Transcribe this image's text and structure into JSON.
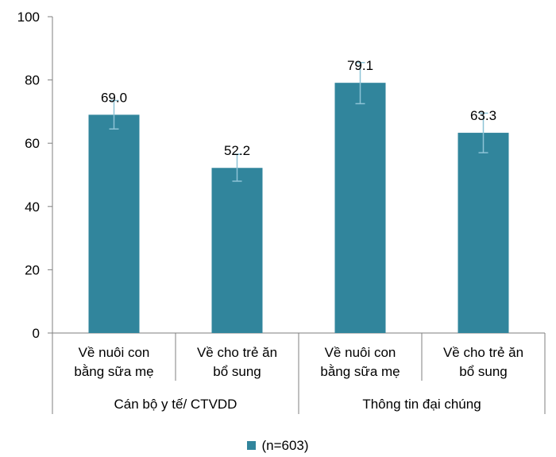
{
  "chart_data": {
    "type": "bar",
    "categories": [
      {
        "line1": "Về nuôi con",
        "line2": "bằng sữa mẹ",
        "group": "Cán bộ y tế/ CTVDD"
      },
      {
        "line1": "Về cho trẻ ăn",
        "line2": "bổ sung",
        "group": "Cán bộ y tế/ CTVDD"
      },
      {
        "line1": "Về nuôi con",
        "line2": "bằng sữa mẹ",
        "group": "Thông tin đại chúng"
      },
      {
        "line1": "Về cho trẻ ăn",
        "line2": "bổ sung",
        "group": "Thông tin đại chúng"
      }
    ],
    "groups": [
      "Cán bộ y tế/ CTVDD",
      "Thông tin đại chúng"
    ],
    "series": [
      {
        "name": "(n=603)",
        "values": [
          69.0,
          52.2,
          79.1,
          63.3
        ],
        "value_labels": [
          "69.0",
          "52.2",
          "79.1",
          "63.3"
        ],
        "error_low": [
          64.5,
          48.0,
          72.5,
          57.0
        ],
        "error_high": [
          73.5,
          56.5,
          85.5,
          69.5
        ]
      }
    ],
    "yticks": [
      "0",
      "20",
      "40",
      "60",
      "80",
      "100"
    ],
    "ylim": [
      0,
      100
    ],
    "title": "",
    "xlabel": "",
    "ylabel": "",
    "grid": false,
    "legend_position": "bottom",
    "colors": {
      "bar": "#31859C",
      "error_bar": "#8DC3D6",
      "axis": "#7F7F7F"
    }
  }
}
